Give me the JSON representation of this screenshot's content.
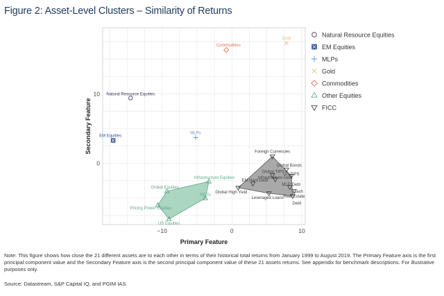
{
  "figure": {
    "title": "Figure 2: Asset-Level Clusters – Similarity of Returns",
    "note": "Note: This figure shows how close the 21 different assets are to each other in terms of their historical total returns from January 1999 to August 2019. The Primary Feature axis is the first principal component value and the Secondary Feature axis is the second principal component value of these 21 assets returns. See appendix for benchmark descriptions. For illustrative purposes only.",
    "source": "Source: Datastream, S&P Capital IQ, and PGIM IAS."
  },
  "colors": {
    "Natural Resource Equities": "#3a3a5a",
    "EM Equities": "#2a52a0",
    "MLPs": "#6a8fd0",
    "Gold": "#e0c080",
    "Commodities": "#e07050",
    "Other Equities": "#5aaa88",
    "FICC": "#444444",
    "cluster_equities": "#9ccfb6",
    "cluster_ficc": "#9a9a9a"
  },
  "chart_data": {
    "type": "scatter",
    "title": "Figure 2: Asset-Level Clusters – Similarity of Returns",
    "xlabel": "Primary Feature",
    "ylabel": "Secondary Feature",
    "xlim": [
      -18.5,
      10.5
    ],
    "ylim": [
      -8.8,
      19.5
    ],
    "xticks": [
      -10,
      0,
      10
    ],
    "yticks": [
      0,
      10
    ],
    "grid": true,
    "legend_position": "right",
    "series": [
      {
        "name": "Natural Resource Equities",
        "marker": "circle",
        "points": [
          {
            "x": -14.5,
            "y": 9.4,
            "label": "Natural Resource Equities"
          }
        ]
      },
      {
        "name": "EM Equities",
        "marker": "square-x",
        "points": [
          {
            "x": -17.0,
            "y": 3.3,
            "label": "EM Equities"
          }
        ]
      },
      {
        "name": "MLPs",
        "marker": "plus",
        "points": [
          {
            "x": -5.2,
            "y": 3.7,
            "label": "MLPs"
          }
        ]
      },
      {
        "name": "Gold",
        "marker": "x",
        "points": [
          {
            "x": 7.8,
            "y": 17.3,
            "label": "Gold"
          }
        ]
      },
      {
        "name": "Commodities",
        "marker": "diamond",
        "points": [
          {
            "x": -0.8,
            "y": 16.3,
            "label": "Commodities"
          }
        ]
      },
      {
        "name": "Other Equities",
        "marker": "triangle-up",
        "points": [
          {
            "x": -3.3,
            "y": -2.6,
            "label": "Infrastructure Equities"
          },
          {
            "x": -9.3,
            "y": -4.0,
            "label": "Global Equities"
          },
          {
            "x": -3.8,
            "y": -5.0,
            "label": "REITs"
          },
          {
            "x": -10.6,
            "y": -6.0,
            "label": "Pricing Power Equities"
          },
          {
            "x": -9.0,
            "y": -8.0,
            "label": "US Equities"
          }
        ]
      },
      {
        "name": "FICC",
        "marker": "triangle-down",
        "points": [
          {
            "x": 5.8,
            "y": 1.0,
            "label": "Foreign Currencies"
          },
          {
            "x": 7.8,
            "y": -0.9,
            "label": "Global Bonds"
          },
          {
            "x": 8.5,
            "y": -1.8,
            "label": "US TIPS"
          },
          {
            "x": 5.8,
            "y": -1.7,
            "label": "Global TIPS"
          },
          {
            "x": 6.2,
            "y": -2.3,
            "label": "Infrastructure Debt"
          },
          {
            "x": 3.0,
            "y": -2.9,
            "label": "EM Hard Debt"
          },
          {
            "x": 0.9,
            "y": -3.5,
            "label": "Global High Yield"
          },
          {
            "x": 8.3,
            "y": -3.4,
            "label": "MLP Debt"
          },
          {
            "x": 8.9,
            "y": -4.0,
            "label": "Cash"
          },
          {
            "x": 5.3,
            "y": -4.3,
            "label": "Leveraged Loans"
          },
          {
            "x": 8.7,
            "y": -4.7,
            "label": "Real Estate Debt"
          }
        ]
      }
    ],
    "clusters": [
      {
        "name": "Other Equities",
        "hull": [
          "Infrastructure Equities",
          "REITs",
          "US Equities",
          "Pricing Power Equities",
          "Global Equities"
        ]
      },
      {
        "name": "FICC",
        "hull": [
          "Foreign Currencies",
          "US TIPS",
          "Real Estate Debt",
          "Leveraged Loans",
          "Global High Yield"
        ]
      }
    ]
  }
}
